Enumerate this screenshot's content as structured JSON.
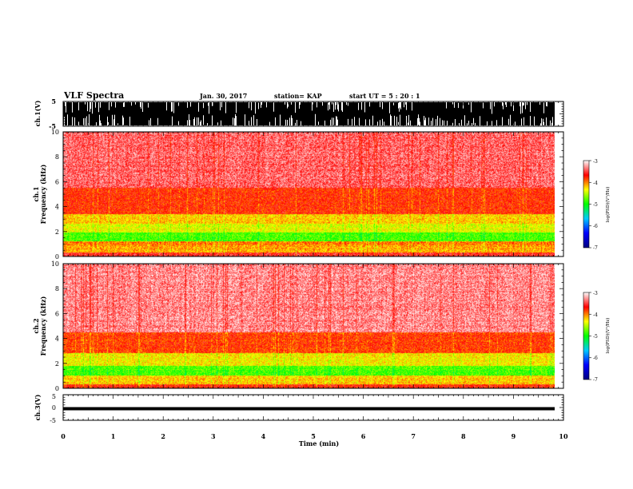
{
  "header": {
    "title": "VLF Spectra",
    "date": "Jan. 30, 2017",
    "station": "station= KAP",
    "start": "start  UT  =   5  : 20 : 1"
  },
  "chart_data": [
    {
      "type": "line",
      "panel": "ch1-waveform",
      "ylabel": "ch.1(V)",
      "ylim": [
        -5,
        5
      ],
      "ytick_labels": [
        "5",
        "-5"
      ],
      "xlim": [
        0,
        10
      ],
      "x_data_end": 9.83,
      "series": [
        {
          "values": "dense noise, saturating between -5 and 5 V"
        }
      ]
    },
    {
      "type": "heatmap",
      "panel": "ch1-spectrogram",
      "ylabel": "ch.1",
      "ylabel2": "Frequency (kHz)",
      "ylim": [
        0,
        10
      ],
      "ytick_labels": [
        "0",
        "2",
        "4",
        "6",
        "8",
        "10"
      ],
      "xlim": [
        0,
        10
      ],
      "x_data_end": 9.83,
      "bands": [
        {
          "f": [
            0.0,
            0.3
          ],
          "level": -3.6
        },
        {
          "f": [
            0.3,
            0.9
          ],
          "level": -4.1
        },
        {
          "f": [
            0.9,
            1.2
          ],
          "level": -4.0
        },
        {
          "f": [
            1.2,
            1.9
          ],
          "level": -4.8
        },
        {
          "f": [
            1.9,
            2.6
          ],
          "level": -4.4
        },
        {
          "f": [
            2.6,
            3.4
          ],
          "level": -4.2
        },
        {
          "f": [
            3.4,
            5.5
          ],
          "level": -3.75
        },
        {
          "f": [
            5.5,
            10.0
          ],
          "level": -3.4
        }
      ],
      "colorbar": {
        "label": "log(PSD)(V²/Hz)",
        "range": [
          -7,
          -3
        ],
        "tick_labels": [
          "-3",
          "-4",
          "-5",
          "-6",
          "-7"
        ]
      }
    },
    {
      "type": "heatmap",
      "panel": "ch2-spectrogram",
      "ylabel": "ch.2",
      "ylabel2": "Frequency (kHz)",
      "ylim": [
        0,
        10
      ],
      "ytick_labels": [
        "0",
        "2",
        "4",
        "6",
        "8",
        "10"
      ],
      "xlim": [
        0,
        10
      ],
      "x_data_end": 9.83,
      "bands": [
        {
          "f": [
            0.0,
            0.3
          ],
          "level": -3.7
        },
        {
          "f": [
            0.3,
            1.0
          ],
          "level": -4.2
        },
        {
          "f": [
            1.0,
            1.8
          ],
          "level": -4.8
        },
        {
          "f": [
            1.8,
            2.8
          ],
          "level": -4.3
        },
        {
          "f": [
            2.8,
            4.5
          ],
          "level": -3.8
        },
        {
          "f": [
            4.5,
            10.0
          ],
          "level": -3.3
        }
      ],
      "colorbar": {
        "label": "log(PSD)(V²/Hz)",
        "range": [
          -7,
          -3
        ],
        "tick_labels": [
          "-3",
          "-4",
          "-5",
          "-6",
          "-7"
        ]
      }
    },
    {
      "type": "line",
      "panel": "ch3-waveform",
      "ylabel": "ch.3(V)",
      "ylim": [
        -5,
        5
      ],
      "ytick_labels": [
        "5",
        "0",
        "-5"
      ],
      "xlim": [
        0,
        10
      ],
      "x_data_end": 9.83,
      "series": [
        {
          "values": "flat trace near -1.5 V"
        }
      ],
      "xlabel": "Time  (min)",
      "xtick_labels": [
        "0",
        "1",
        "2",
        "3",
        "4",
        "5",
        "6",
        "7",
        "8",
        "9",
        "10"
      ]
    }
  ],
  "colors": {
    "colormap": [
      "#000080",
      "#0000ff",
      "#00c8ff",
      "#00ff00",
      "#ffff00",
      "#ff0000",
      "#ffffff"
    ],
    "axes": "#000000"
  }
}
